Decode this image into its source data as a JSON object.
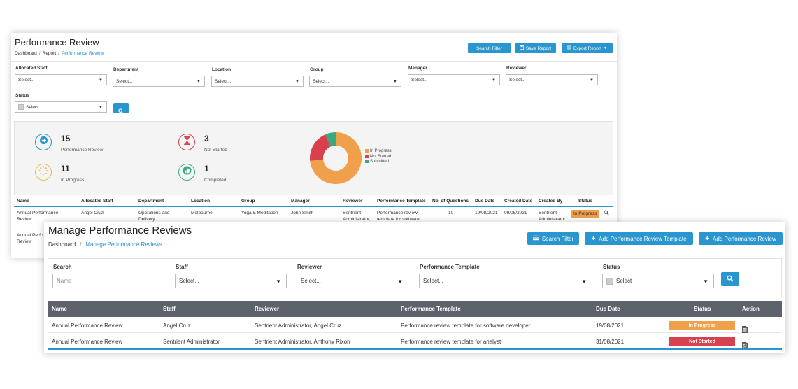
{
  "colors": {
    "primary": "#2a96cf",
    "in_progress": "#f0a04b",
    "not_started": "#d9404d",
    "submitted": "#3aa97c",
    "table_header": "#5d636b"
  },
  "back_window": {
    "title": "Performance Review",
    "breadcrumb": [
      "Dashboard",
      "Report",
      "Performance Review"
    ],
    "buttons": {
      "search_filter": "Search Filter",
      "save_report": "Save Report",
      "export_report": "Export Report"
    },
    "filters": [
      {
        "label": "Allocated Staff",
        "value": "Select..."
      },
      {
        "label": "Department",
        "value": "Select..."
      },
      {
        "label": "Location",
        "value": "Select..."
      },
      {
        "label": "Group",
        "value": "Select..."
      },
      {
        "label": "Manager",
        "value": "Select..."
      },
      {
        "label": "Reviewer",
        "value": "Select..."
      }
    ],
    "status_filter": {
      "label": "Status",
      "value": "Select"
    },
    "stats": [
      {
        "value": "15",
        "label": "Performance Review",
        "icon": "arrow-right-icon"
      },
      {
        "value": "3",
        "label": "Not Started",
        "icon": "hourglass-icon"
      },
      {
        "value": "11",
        "label": "In Progress",
        "icon": "spinner-icon"
      },
      {
        "value": "1",
        "label": "Completed",
        "icon": "thumbs-up-icon"
      }
    ],
    "table": {
      "columns": [
        "Name",
        "Allocated Staff",
        "Department",
        "Location",
        "Group",
        "Manager",
        "Reviewer",
        "Performance Template",
        "No. of Questions",
        "Due Date",
        "Created Date",
        "Created By",
        "Status"
      ],
      "rows": [
        {
          "name": "Annual Performance Review",
          "allocated_staff": "Angel Cruz",
          "department": "Operations and Delivery",
          "location": "Melbourne",
          "group": "Yoga & Meditation",
          "manager": "John Smith",
          "reviewer": "Sentrient Administrator,",
          "template": "Performance review template for software",
          "questions": "10",
          "due_date": "19/08/2021",
          "created_date": "09/08/2021",
          "created_by": "Sentrient Administrator",
          "status": "In Progress"
        },
        {
          "name": "Annual Perfo Review"
        }
      ]
    }
  },
  "chart_data": {
    "type": "pie",
    "categories": [
      "In Progress",
      "Not Started",
      "Submitted"
    ],
    "values": [
      11,
      3,
      1
    ],
    "legend_placement": "right",
    "colors": [
      "#f0a04b",
      "#d9404d",
      "#3aa97c"
    ]
  },
  "front_window": {
    "title": "Manage Performance Reviews",
    "breadcrumb": [
      "Dashboard",
      "Manage Performance Reviews"
    ],
    "buttons": {
      "search_filter": "Search Filter",
      "add_template": "Add Performance Review Template",
      "add_review": "Add Performance Review"
    },
    "filters": {
      "search": {
        "label": "Search",
        "placeholder": "Name"
      },
      "staff": {
        "label": "Staff",
        "value": "Select..."
      },
      "reviewer": {
        "label": "Reviewer",
        "value": "Select..."
      },
      "template": {
        "label": "Performance Template",
        "value": "Select..."
      },
      "status": {
        "label": "Status",
        "value": "Select"
      }
    },
    "table": {
      "columns": [
        "Name",
        "Staff",
        "Reviewer",
        "Performance Template",
        "Due Date",
        "Status",
        "Action"
      ],
      "rows": [
        {
          "name": "Annual Performance Review",
          "staff": "Angel Cruz",
          "reviewer": "Sentrient Administrator, Angel Cruz",
          "template": "Performance review template for software developer",
          "due_date": "19/08/2021",
          "status": "In Progress",
          "status_color": "#f0a04b"
        },
        {
          "name": "Annual Performance Review",
          "staff": "Sentrient Administrator",
          "reviewer": "Sentrient Administrator, Anthony Rixon",
          "template": "Performance review template for analyst",
          "due_date": "31/08/2021",
          "status": "Not Started",
          "status_color": "#d9404d"
        }
      ]
    }
  }
}
